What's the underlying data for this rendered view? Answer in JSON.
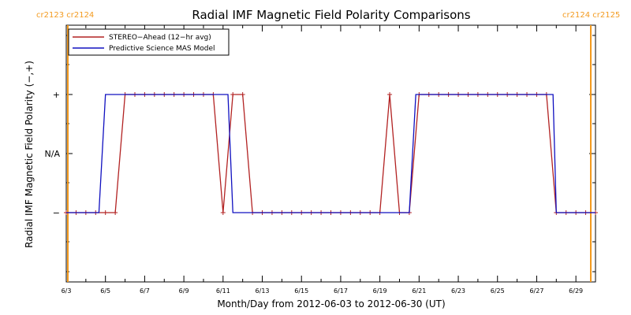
{
  "chart_data": {
    "type": "line",
    "title": "Radial IMF Magnetic Field Polarity Comparisons",
    "xlabel": "Month/Day from 2012-06-03 to 2012-06-30 (UT)",
    "ylabel": "Radial IMF Magnetic Field Polarity (−,+)",
    "xlim": [
      "2012-06-03",
      "2012-06-30"
    ],
    "y_categories": [
      "−",
      "N/A",
      "+"
    ],
    "x_tick_labels": [
      "6/3",
      "6/5",
      "6/7",
      "6/9",
      "6/11",
      "6/13",
      "6/15",
      "6/17",
      "6/19",
      "6/21",
      "6/23",
      "6/25",
      "6/27",
      "6/29"
    ],
    "y_tick_labels": [
      "−",
      "N/A",
      "+"
    ],
    "grid": false,
    "legend_position": "top-left",
    "carrington": [
      {
        "top_label": "cr2123 cr2124",
        "date": "2012-06-03",
        "color": "#f39a1e"
      },
      {
        "top_label": "cr2124 cr2125",
        "date": "2012-06-30",
        "color": "#f39a1e"
      }
    ],
    "series": [
      {
        "name": "STEREO−Ahead (12−hr avg)",
        "color": "#b22222",
        "markers": "plus",
        "x": [
          "2012-06-03 00:00",
          "2012-06-03 12:00",
          "2012-06-04 00:00",
          "2012-06-04 12:00",
          "2012-06-05 00:00",
          "2012-06-05 12:00",
          "2012-06-06 00:00",
          "2012-06-06 12:00",
          "2012-06-07 00:00",
          "2012-06-07 12:00",
          "2012-06-08 00:00",
          "2012-06-08 12:00",
          "2012-06-09 00:00",
          "2012-06-09 12:00",
          "2012-06-10 00:00",
          "2012-06-10 12:00",
          "2012-06-11 00:00",
          "2012-06-11 12:00",
          "2012-06-12 00:00",
          "2012-06-12 12:00",
          "2012-06-13 00:00",
          "2012-06-13 12:00",
          "2012-06-14 00:00",
          "2012-06-14 12:00",
          "2012-06-15 00:00",
          "2012-06-15 12:00",
          "2012-06-16 00:00",
          "2012-06-16 12:00",
          "2012-06-17 00:00",
          "2012-06-17 12:00",
          "2012-06-18 00:00",
          "2012-06-18 12:00",
          "2012-06-19 00:00",
          "2012-06-19 12:00",
          "2012-06-20 00:00",
          "2012-06-20 12:00",
          "2012-06-21 00:00",
          "2012-06-21 12:00",
          "2012-06-22 00:00",
          "2012-06-22 12:00",
          "2012-06-23 00:00",
          "2012-06-23 12:00",
          "2012-06-24 00:00",
          "2012-06-24 12:00",
          "2012-06-25 00:00",
          "2012-06-25 12:00",
          "2012-06-26 00:00",
          "2012-06-26 12:00",
          "2012-06-27 00:00",
          "2012-06-27 12:00",
          "2012-06-28 00:00",
          "2012-06-28 12:00",
          "2012-06-29 00:00",
          "2012-06-29 12:00",
          "2012-06-30 00:00"
        ],
        "y": [
          "−",
          "−",
          "−",
          "−",
          "−",
          "−",
          "+",
          "+",
          "+",
          "+",
          "+",
          "+",
          "+",
          "+",
          "+",
          "+",
          "−",
          "+",
          "+",
          "−",
          "−",
          "−",
          "−",
          "−",
          "−",
          "−",
          "−",
          "−",
          "−",
          "−",
          "−",
          "−",
          "−",
          "+",
          "−",
          "−",
          "+",
          "+",
          "+",
          "+",
          "+",
          "+",
          "+",
          "+",
          "+",
          "+",
          "+",
          "+",
          "+",
          "+",
          "−",
          "−",
          "−",
          "−",
          "−"
        ]
      },
      {
        "name": "Predictive Science MAS Model",
        "color": "#1010c0",
        "markers": "none",
        "x": [
          "2012-06-03 00:00",
          "2012-06-04 16:00",
          "2012-06-05 00:00",
          "2012-06-11 06:00",
          "2012-06-11 12:00",
          "2012-06-20 12:00",
          "2012-06-20 20:00",
          "2012-06-27 20:00",
          "2012-06-28 00:00",
          "2012-06-30 00:00"
        ],
        "y": [
          "−",
          "−",
          "+",
          "+",
          "−",
          "−",
          "+",
          "+",
          "−",
          "−"
        ]
      }
    ]
  }
}
